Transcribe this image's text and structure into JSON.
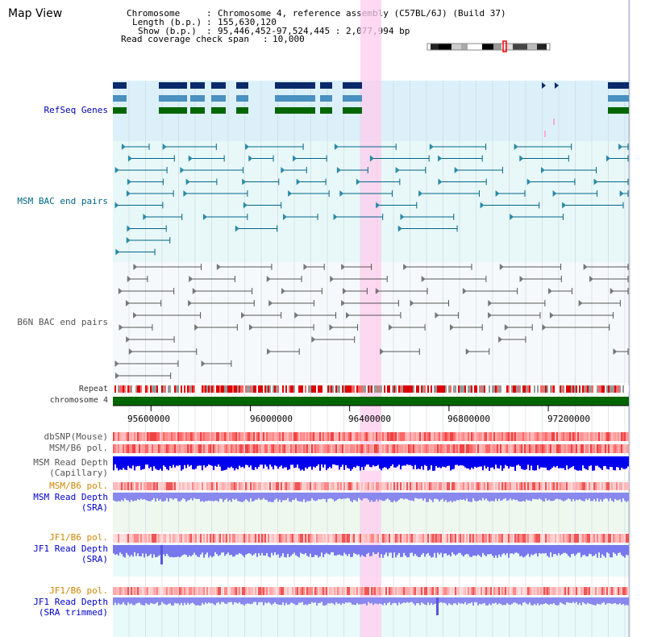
{
  "title": "Map View",
  "header": {
    "chromosome_label": "Chromosome",
    "chromosome_value": "Chromosome 4, reference assembly (C57BL/6J) (Build 37)",
    "length_label": "Length (b.p.)",
    "length_value": "155,630,120",
    "show_label": "Show (b.p.)",
    "show_value": "95,446,452-97,524,445 : 2,077,994 bp",
    "coverage_label": "Read coverage check span",
    "coverage_value": "10,000"
  },
  "tracks": {
    "refseq": "RefSeq Genes",
    "msm_bac": "MSM BAC end pairs",
    "b6n_bac": "B6N BAC end pairs",
    "repeat": "Repeat",
    "chromosome": "chromosome 4",
    "dbsnp": "dbSNP(Mouse)",
    "msm_b6_pol_1": "MSM/B6 pol.",
    "msm_depth_cap_1": "MSM Read Depth",
    "msm_depth_cap_2": "(Capillary)",
    "msm_b6_pol_2": "MSM/B6 pol.",
    "msm_depth_sra_1": "MSM Read Depth",
    "msm_depth_sra_2": "(SRA)",
    "jf1_b6_pol_1": "JF1/B6 pol.",
    "jf1_depth_sra_1": "JF1 Read Depth",
    "jf1_depth_sra_2": "(SRA)",
    "jf1_b6_pol_2": "JF1/B6 pol.",
    "jf1_depth_trim_1": "JF1 Read Depth",
    "jf1_depth_trim_2": "(SRA trimmed)"
  },
  "axis": {
    "ticks": [
      "95600000",
      "96000000",
      "96400000",
      "96800000",
      "97200000"
    ],
    "tick_values": [
      95600000,
      96000000,
      96400000,
      96800000,
      97200000
    ],
    "range": [
      95446452,
      97524445
    ]
  },
  "colors": {
    "refseq_dark": "#0a2a6a",
    "refseq_mid": "#4a90c0",
    "refseq_green": "#006600",
    "msm_line": "#006688",
    "b6n_line": "#555555",
    "chromosome_bar": "#006600",
    "highlight": "#ffccee",
    "depth_blue": "#0000ee",
    "depth_light": "#8888ee"
  }
}
